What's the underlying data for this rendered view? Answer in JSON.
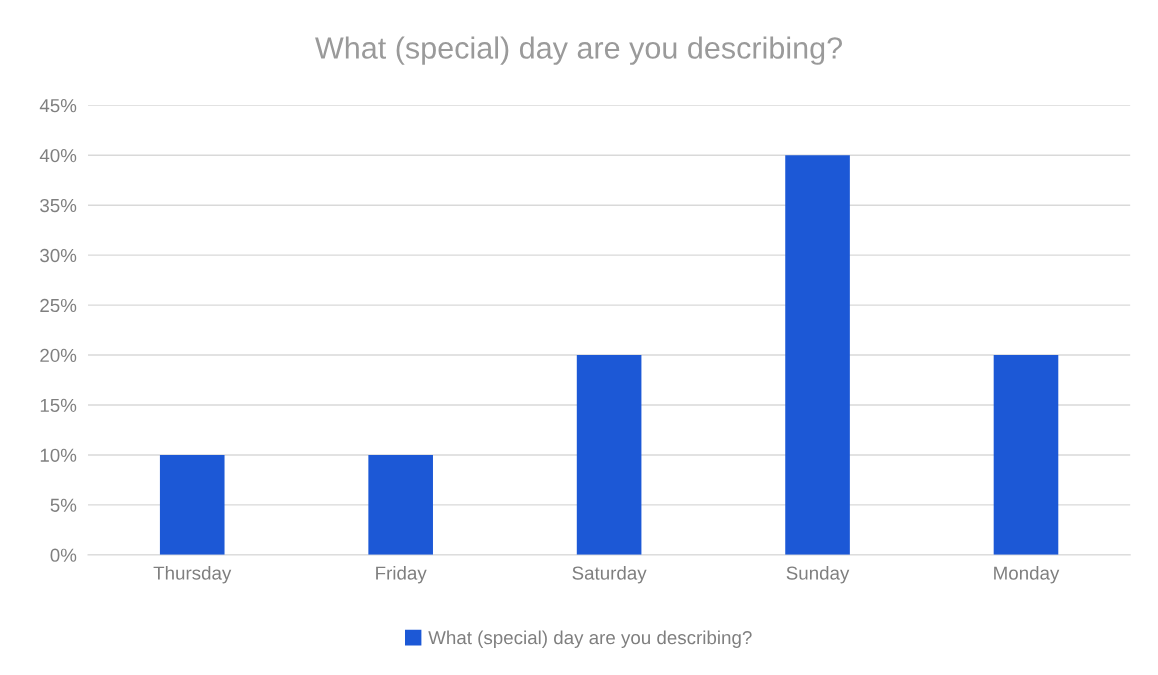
{
  "chart_data": {
    "type": "bar",
    "title": "What (special) day are you describing?",
    "categories": [
      "Thursday",
      "Friday",
      "Saturday",
      "Sunday",
      "Monday"
    ],
    "series": [
      {
        "name": "What (special) day are you describing?",
        "color": "#1c58d6",
        "values": [
          10,
          10,
          20,
          40,
          20
        ]
      }
    ],
    "ylim": [
      0,
      45
    ],
    "yticks": [
      {
        "value": 0,
        "label": "0%"
      },
      {
        "value": 5,
        "label": "5%"
      },
      {
        "value": 10,
        "label": "10%"
      },
      {
        "value": 15,
        "label": "15%"
      },
      {
        "value": 20,
        "label": "20%"
      },
      {
        "value": 25,
        "label": "25%"
      },
      {
        "value": 30,
        "label": "30%"
      },
      {
        "value": 35,
        "label": "35%"
      },
      {
        "value": 40,
        "label": "40%"
      },
      {
        "value": 45,
        "label": "45%"
      }
    ],
    "grid": "y",
    "legend": "bottom"
  }
}
